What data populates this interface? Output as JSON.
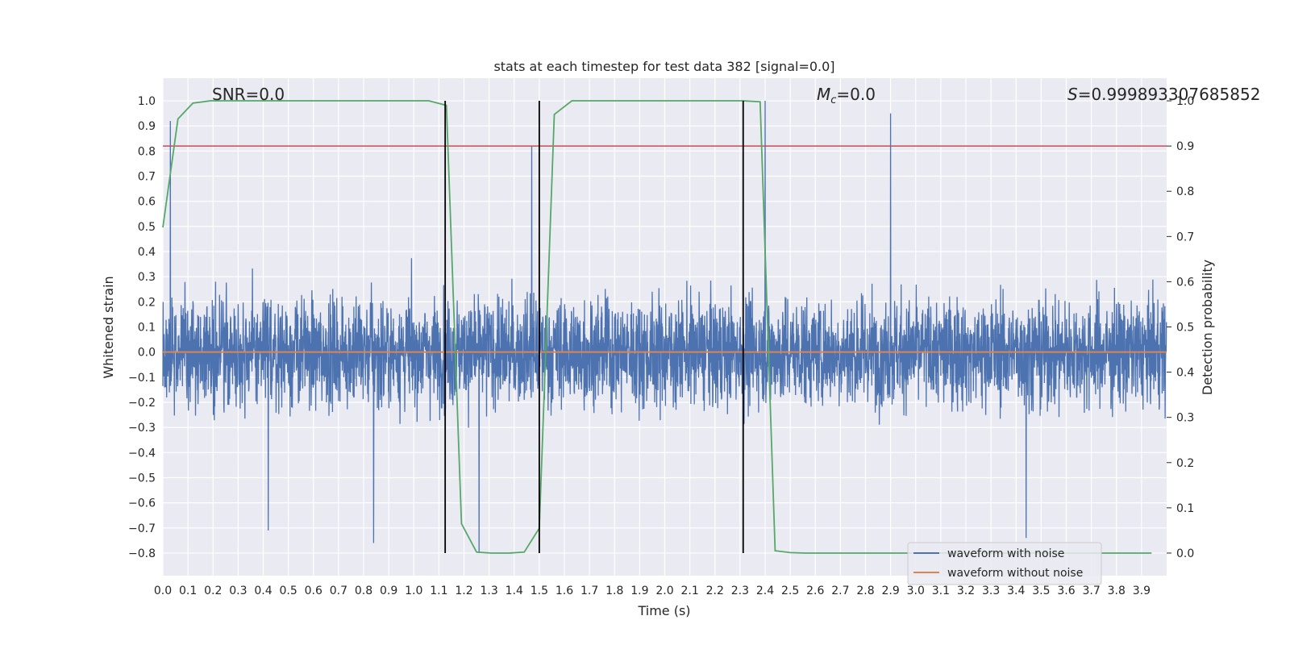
{
  "chart_data": {
    "type": "line",
    "title": "stats at each timestep for test data 382 [signal=0.0]",
    "xlabel": "Time (s)",
    "ylabel": "Whitened strain",
    "ylabel_right": "Detection probability",
    "xlim": [
      0.0,
      4.0
    ],
    "ylim": [
      -0.89,
      1.09
    ],
    "ylim_right": [
      -0.05,
      1.05
    ],
    "x_ticks": [
      0.0,
      0.1,
      0.2,
      0.3,
      0.4,
      0.5,
      0.6,
      0.7,
      0.8,
      0.9,
      1.0,
      1.1,
      1.2,
      1.3,
      1.4,
      1.5,
      1.6,
      1.7,
      1.8,
      1.9,
      2.0,
      2.1,
      2.2,
      2.3,
      2.4,
      2.5,
      2.6,
      2.7,
      2.8,
      2.9,
      3.0,
      3.1,
      3.2,
      3.3,
      3.4,
      3.5,
      3.6,
      3.7,
      3.8,
      3.9
    ],
    "x_tick_labels": [
      "0.0",
      "0.1",
      "0.2",
      "0.3",
      "0.4",
      "0.5",
      "0.6",
      "0.7",
      "0.8",
      "0.9",
      "1.0",
      "1.1",
      "1.2",
      "1.3",
      "1.4",
      "1.5",
      "1.6",
      "1.7",
      "1.8",
      "1.9",
      "2.0",
      "2.1",
      "2.2",
      "2.3",
      "2.4",
      "2.5",
      "2.6",
      "2.7",
      "2.8",
      "2.9",
      "3.0",
      "3.1",
      "3.2",
      "3.3",
      "3.4",
      "3.5",
      "3.6",
      "3.7",
      "3.8",
      "3.9"
    ],
    "y_ticks": [
      1.0,
      0.9,
      0.8,
      0.7,
      0.6,
      0.5,
      0.4,
      0.3,
      0.2,
      0.1,
      0.0,
      -0.1,
      -0.2,
      -0.3,
      -0.4,
      -0.5,
      -0.6,
      -0.7,
      -0.8
    ],
    "y_tick_labels": [
      "1.0",
      "0.9",
      "0.8",
      "0.7",
      "0.6",
      "0.5",
      "0.4",
      "0.3",
      "0.2",
      "0.1",
      "0.0",
      "−0.1",
      "−0.2",
      "−0.3",
      "−0.4",
      "−0.5",
      "−0.6",
      "−0.7",
      "−0.8"
    ],
    "y_ticks_right": [
      1.0,
      0.9,
      0.8,
      0.7,
      0.6,
      0.5,
      0.4,
      0.3,
      0.2,
      0.1,
      0.0
    ],
    "y_tick_labels_right": [
      "1.0",
      "0.9",
      "0.8",
      "0.7",
      "0.6",
      "0.5",
      "0.4",
      "0.3",
      "0.2",
      "0.1",
      "0.0"
    ],
    "grid": true,
    "legend_position": "lower-right",
    "series": [
      {
        "name": "waveform with noise",
        "color": "#4c72b0",
        "axis": "left",
        "style": "dense noise trace, 0.0–4.0 s, roughly uniform amplitude about ±0.4 with spikes",
        "peaks": [
          {
            "x": 0.03,
            "y": 0.92
          },
          {
            "x": 1.47,
            "y": 0.82
          },
          {
            "x": 2.4,
            "y": 1.0
          },
          {
            "x": 2.9,
            "y": 0.95
          }
        ],
        "troughs": [
          {
            "x": 0.42,
            "y": -0.71
          },
          {
            "x": 0.84,
            "y": -0.76
          },
          {
            "x": 1.26,
            "y": -0.8
          },
          {
            "x": 3.44,
            "y": -0.74
          }
        ]
      },
      {
        "name": "waveform without noise",
        "color": "#dd8452",
        "axis": "left",
        "x": [
          0.0,
          4.0
        ],
        "y": [
          0.0,
          0.0
        ]
      },
      {
        "color": "#55a868",
        "axis": "right",
        "x": [
          0.0,
          0.06,
          0.12,
          0.19,
          0.25,
          0.31,
          0.38,
          0.44,
          0.5,
          0.56,
          0.63,
          0.69,
          0.75,
          0.81,
          0.88,
          0.94,
          1.0,
          1.06,
          1.13,
          1.19,
          1.25,
          1.31,
          1.38,
          1.44,
          1.5,
          1.56,
          1.63,
          1.69,
          1.75,
          1.81,
          1.88,
          1.94,
          2.0,
          2.06,
          2.13,
          2.19,
          2.25,
          2.31,
          2.38,
          2.44,
          2.5,
          2.56,
          2.63,
          2.69,
          2.75,
          2.81,
          2.88,
          2.94,
          3.0,
          3.06,
          3.13,
          3.19,
          3.25,
          3.31,
          3.38,
          3.44,
          3.5,
          3.56,
          3.63,
          3.69,
          3.75,
          3.81,
          3.88,
          3.94
        ],
        "y": [
          0.72,
          0.96,
          0.995,
          1.0,
          1.0,
          1.0,
          1.0,
          1.0,
          1.0,
          1.0,
          1.0,
          1.0,
          1.0,
          1.0,
          1.0,
          1.0,
          1.0,
          1.0,
          0.99,
          0.065,
          0.002,
          0.0,
          0.0,
          0.002,
          0.055,
          0.97,
          1.0,
          1.0,
          1.0,
          1.0,
          1.0,
          1.0,
          1.0,
          1.0,
          1.0,
          1.0,
          1.0,
          1.0,
          0.998,
          0.005,
          0.001,
          0.0,
          0.0,
          0.0,
          0.0,
          0.0,
          0.0,
          0.0,
          0.0,
          0.0,
          0.0,
          0.0,
          0.0,
          0.0,
          0.0,
          0.0,
          0.0,
          0.0,
          0.0,
          0.0,
          0.0,
          0.0,
          0.0,
          0.0
        ]
      }
    ],
    "threshold_line": {
      "axis": "right",
      "y": 0.9,
      "color": "#c44e52"
    },
    "event_lines": {
      "x": [
        1.125,
        1.5,
        2.3125
      ],
      "y_range": [
        -0.8,
        1.0
      ],
      "color": "#000000"
    },
    "annotations": {
      "snr": "SNR=0.0",
      "mc_symbol": "M",
      "mc_subscript": "c",
      "mc_value": "=0.0",
      "s_symbol": "S",
      "s_value": "=0.999893307685852"
    }
  }
}
